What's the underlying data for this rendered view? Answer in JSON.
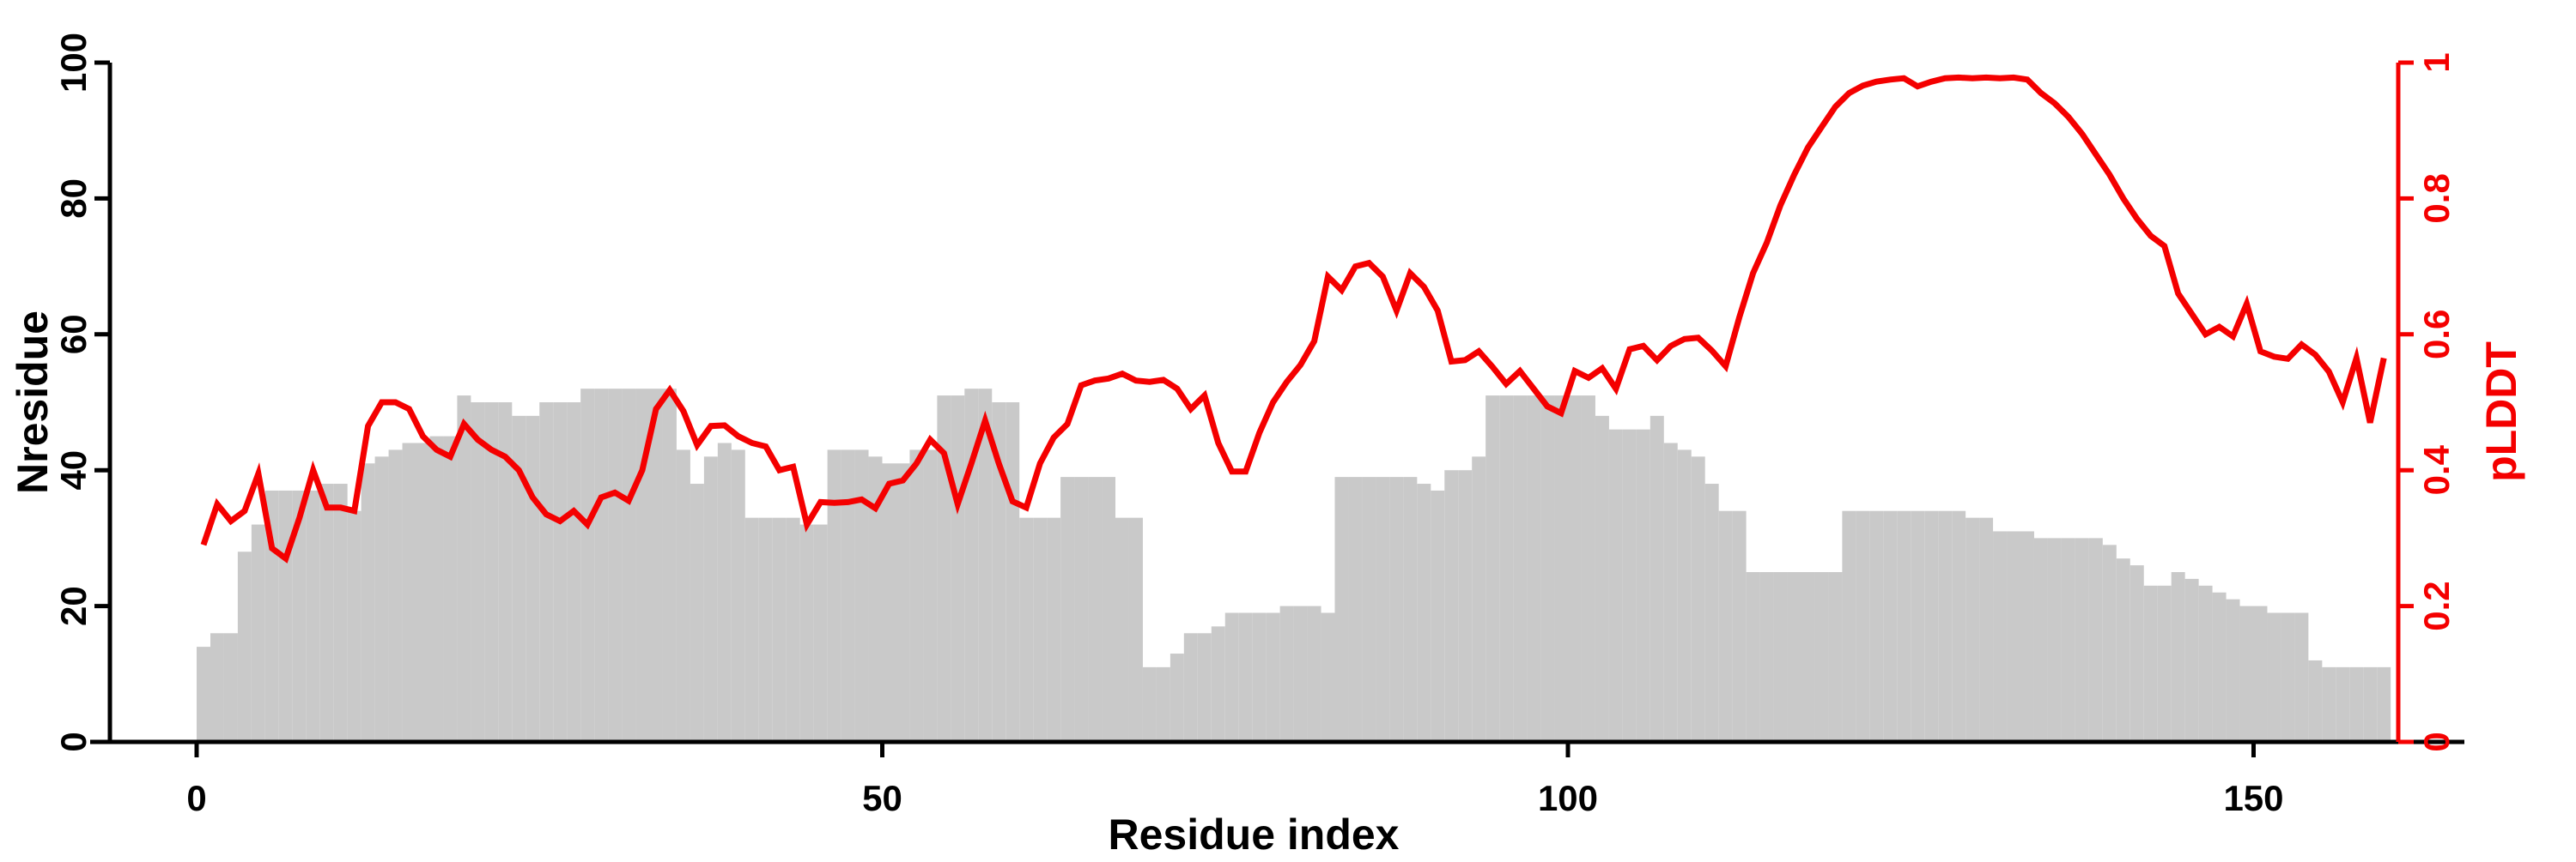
{
  "chart_data": {
    "type": "bar+line",
    "title": "",
    "background": "#ffffff",
    "grid": false,
    "legend": "none",
    "x": [
      0,
      1,
      2,
      3,
      4,
      5,
      6,
      7,
      8,
      9,
      10,
      11,
      12,
      13,
      14,
      15,
      16,
      17,
      18,
      19,
      20,
      21,
      22,
      23,
      24,
      25,
      26,
      27,
      28,
      29,
      30,
      31,
      32,
      33,
      34,
      35,
      36,
      37,
      38,
      39,
      40,
      41,
      42,
      43,
      44,
      45,
      46,
      47,
      48,
      49,
      50,
      51,
      52,
      53,
      54,
      55,
      56,
      57,
      58,
      59,
      60,
      61,
      62,
      63,
      64,
      65,
      66,
      67,
      68,
      69,
      70,
      71,
      72,
      73,
      74,
      75,
      76,
      77,
      78,
      79,
      80,
      81,
      82,
      83,
      84,
      85,
      86,
      87,
      88,
      89,
      90,
      91,
      92,
      93,
      94,
      95,
      96,
      97,
      98,
      99,
      100,
      101,
      102,
      103,
      104,
      105,
      106,
      107,
      108,
      109,
      110,
      111,
      112,
      113,
      114,
      115,
      116,
      117,
      118,
      119,
      120,
      121,
      122,
      123,
      124,
      125,
      126,
      127,
      128,
      129,
      130,
      131,
      132,
      133,
      134,
      135,
      136,
      137,
      138,
      139,
      140,
      141,
      142,
      143,
      144,
      145,
      146,
      147,
      148,
      149,
      150,
      151,
      152,
      153,
      154,
      155,
      156,
      157,
      158,
      159
    ],
    "series": [
      {
        "name": "Nresidue",
        "type": "bar",
        "axis": "left",
        "color": "#c9c9c9",
        "values": [
          14,
          16,
          16,
          28,
          32,
          37,
          37,
          37,
          37,
          38,
          38,
          34,
          41,
          42,
          43,
          44,
          44,
          45,
          45,
          51,
          50,
          50,
          50,
          48,
          48,
          50,
          50,
          50,
          52,
          52,
          52,
          52,
          52,
          52,
          52,
          43,
          38,
          42,
          44,
          43,
          33,
          33,
          33,
          33,
          32,
          32,
          43,
          43,
          43,
          42,
          41,
          41,
          43,
          43,
          51,
          51,
          52,
          52,
          50,
          50,
          33,
          33,
          33,
          39,
          39,
          39,
          39,
          33,
          33,
          11,
          11,
          13,
          16,
          16,
          17,
          19,
          19,
          19,
          19,
          20,
          20,
          20,
          19,
          39,
          39,
          39,
          39,
          39,
          39,
          38,
          37,
          40,
          40,
          42,
          51,
          51,
          51,
          51,
          51,
          51,
          51,
          51,
          48,
          46,
          46,
          46,
          48,
          44,
          43,
          42,
          38,
          34,
          34,
          25,
          25,
          25,
          25,
          25,
          25,
          25,
          34,
          34,
          34,
          34,
          34,
          34,
          34,
          34,
          34,
          33,
          33,
          31,
          31,
          31,
          30,
          30,
          30,
          30,
          30,
          29,
          27,
          26,
          23,
          23,
          25,
          24,
          23,
          22,
          21,
          20,
          20,
          19,
          19,
          19,
          12,
          11,
          11,
          11,
          11,
          11
        ]
      },
      {
        "name": "pLDDT",
        "type": "line",
        "axis": "right",
        "color": "#f40000",
        "values": [
          0.29,
          0.35,
          0.325,
          0.34,
          0.395,
          0.285,
          0.27,
          0.33,
          0.4,
          0.345,
          0.345,
          0.34,
          0.465,
          0.5,
          0.5,
          0.49,
          0.45,
          0.43,
          0.42,
          0.468,
          0.445,
          0.43,
          0.42,
          0.4,
          0.36,
          0.335,
          0.325,
          0.34,
          0.32,
          0.36,
          0.367,
          0.355,
          0.4,
          0.49,
          0.518,
          0.487,
          0.437,
          0.465,
          0.466,
          0.45,
          0.44,
          0.435,
          0.4,
          0.405,
          0.32,
          0.353,
          0.352,
          0.353,
          0.357,
          0.344,
          0.38,
          0.385,
          0.41,
          0.445,
          0.425,
          0.35,
          0.41,
          0.473,
          0.41,
          0.354,
          0.345,
          0.41,
          0.448,
          0.468,
          0.525,
          0.532,
          0.535,
          0.542,
          0.532,
          0.53,
          0.533,
          0.52,
          0.49,
          0.51,
          0.44,
          0.398,
          0.398,
          0.455,
          0.5,
          0.53,
          0.555,
          0.59,
          0.685,
          0.665,
          0.7,
          0.705,
          0.685,
          0.635,
          0.69,
          0.67,
          0.635,
          0.56,
          0.562,
          0.575,
          0.552,
          0.527,
          0.546,
          0.52,
          0.494,
          0.484,
          0.546,
          0.536,
          0.55,
          0.52,
          0.578,
          0.583,
          0.562,
          0.583,
          0.593,
          0.595,
          0.576,
          0.553,
          0.625,
          0.69,
          0.735,
          0.79,
          0.835,
          0.875,
          0.905,
          0.935,
          0.955,
          0.966,
          0.972,
          0.975,
          0.977,
          0.965,
          0.972,
          0.977,
          0.978,
          0.977,
          0.978,
          0.977,
          0.978,
          0.975,
          0.955,
          0.94,
          0.92,
          0.895,
          0.865,
          0.835,
          0.8,
          0.77,
          0.745,
          0.73,
          0.66,
          0.63,
          0.6,
          0.611,
          0.597,
          0.645,
          0.575,
          0.567,
          0.564,
          0.585,
          0.57,
          0.545,
          0.5,
          0.565,
          0.47,
          0.565
        ]
      }
    ],
    "axes": {
      "left": {
        "label": "Nresidue",
        "color": "#000000",
        "ticks": [
          0,
          20,
          40,
          60,
          80,
          100
        ],
        "tick_labels": [
          "0",
          "20",
          "40",
          "60",
          "80",
          "100"
        ],
        "range": [
          0,
          100
        ]
      },
      "right": {
        "label": "pLDDT",
        "color": "#f40000",
        "ticks": [
          0,
          0.2,
          0.4,
          0.6,
          0.8,
          1
        ],
        "tick_labels": [
          "0",
          "0.2",
          "0.4",
          "0.6",
          "0.8",
          "1"
        ],
        "range": [
          0,
          1
        ]
      },
      "bottom": {
        "label": "Residue index",
        "color": "#000000",
        "ticks": [
          0,
          50,
          100,
          150
        ],
        "tick_labels": [
          "0",
          "50",
          "100",
          "150"
        ],
        "range": [
          0,
          160
        ]
      }
    }
  }
}
